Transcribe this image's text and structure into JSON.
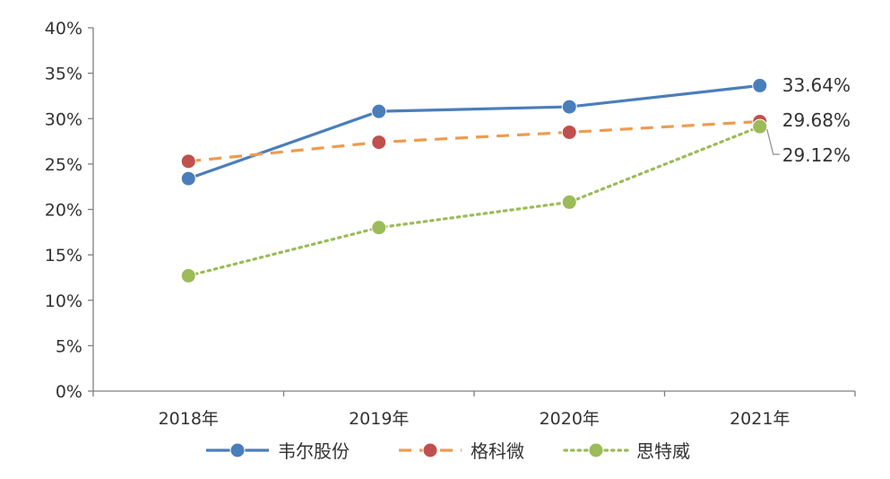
{
  "chart_data": {
    "type": "line",
    "categories": [
      "2018年",
      "2019年",
      "2020年",
      "2021年"
    ],
    "series": [
      {
        "name": "韦尔股份",
        "values": [
          23.4,
          30.8,
          31.3,
          33.64
        ],
        "color": "#4a7ebb",
        "line_style": "solid"
      },
      {
        "name": "格科微",
        "values": [
          25.3,
          27.4,
          28.5,
          29.68
        ],
        "color": "#ed9c50",
        "marker_color": "#c0504d",
        "line_style": "dashed"
      },
      {
        "name": "思特威",
        "values": [
          12.7,
          18.0,
          20.8,
          29.12
        ],
        "color": "#9bbb59",
        "line_style": "dotted"
      }
    ],
    "data_labels": [
      "33.64%",
      "29.68%",
      "29.12%"
    ],
    "yticks": [
      "0%",
      "5%",
      "10%",
      "15%",
      "20%",
      "25%",
      "30%",
      "35%",
      "40%"
    ],
    "ylim": [
      0,
      40
    ],
    "grid": false,
    "legend_position": "bottom"
  }
}
